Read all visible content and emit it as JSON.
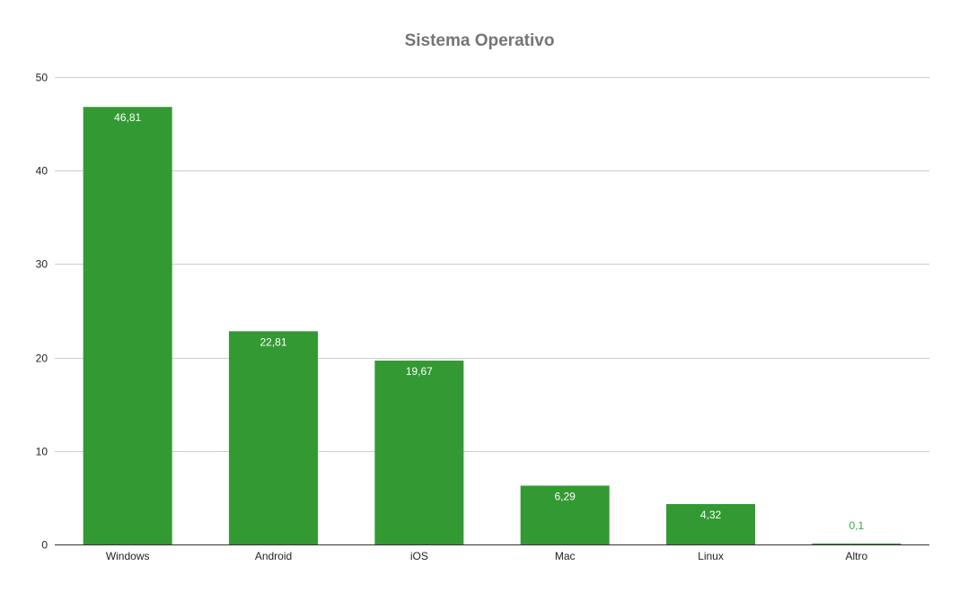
{
  "chart_data": {
    "type": "bar",
    "title": "Sistema Operativo",
    "xlabel": "",
    "ylabel": "",
    "categories": [
      "Windows",
      "Android",
      "iOS",
      "Mac",
      "Linux",
      "Altro"
    ],
    "values": [
      46.81,
      22.81,
      19.67,
      6.29,
      4.32,
      0.1
    ],
    "data_labels": [
      "46,81",
      "22,81",
      "19,67",
      "6,29",
      "4,32",
      "0,1"
    ],
    "y_ticks": [
      "0",
      "10",
      "20",
      "30",
      "40",
      "50"
    ],
    "ylim": [
      0,
      50
    ],
    "grid": true,
    "legend": "none",
    "colors": {
      "bar": "#339933",
      "grid": "#cccccc",
      "axis": "#333333",
      "title": "#757575",
      "outside_label": "#34a853"
    }
  }
}
